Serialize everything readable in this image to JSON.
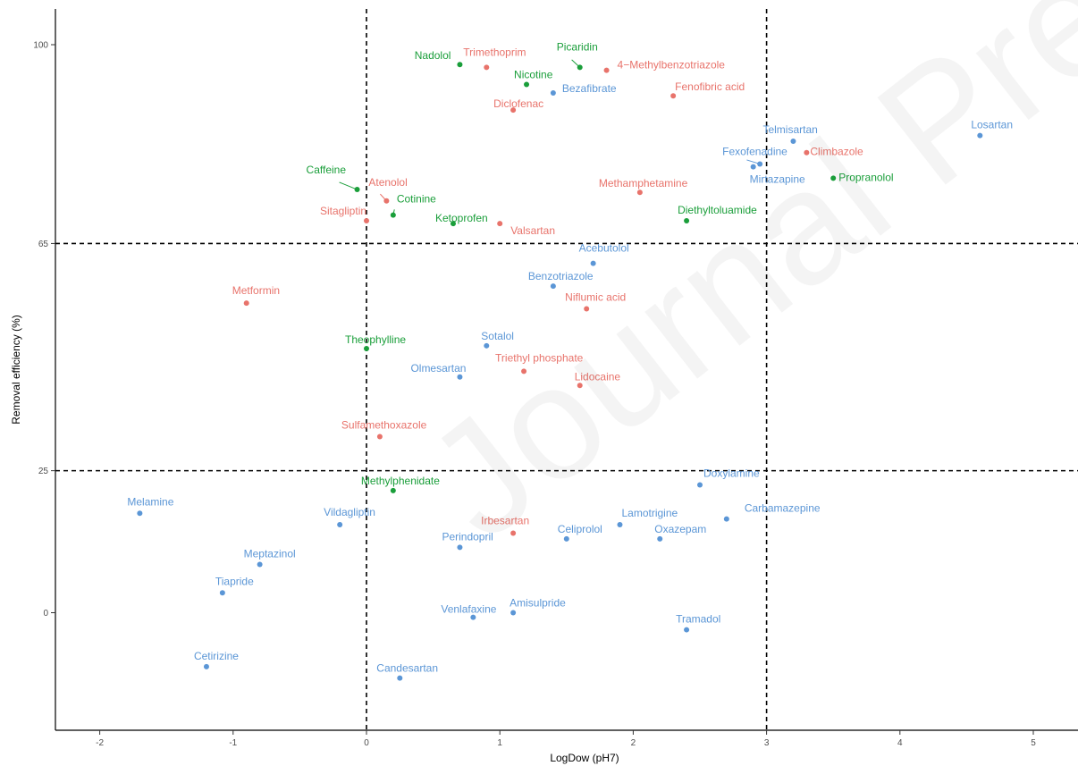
{
  "watermark": "Journal Pre-proof",
  "colors": {
    "group_green": "#1a9e3a",
    "group_red": "#e8736b",
    "group_blue": "#5b96d6"
  },
  "chart_data": {
    "type": "scatter",
    "title": "",
    "xlabel": "LogDow (pH7)",
    "ylabel": "Removal efficiency (%)",
    "xlim": [
      -2.35,
      5.35
    ],
    "ylim": [
      -20,
      105
    ],
    "x_ticks": [
      -2,
      -1,
      0,
      1,
      2,
      3,
      4,
      5
    ],
    "y_ticks": [
      0,
      25,
      65,
      100
    ],
    "reference_lines": {
      "vertical": [
        0,
        3
      ],
      "horizontal": [
        25,
        65
      ],
      "style": "dashed"
    },
    "grid": false,
    "legend": "none",
    "series": [
      {
        "color": "#1a9e3a",
        "points": [
          {
            "label": "Nadolol",
            "x": 0.7,
            "y": 96.5
          },
          {
            "label": "Picaridin",
            "x": 1.6,
            "y": 96.0
          },
          {
            "label": "Nicotine",
            "x": 1.2,
            "y": 93.0
          },
          {
            "label": "Caffeine",
            "x": -0.07,
            "y": 74.5
          },
          {
            "label": "Cotinine",
            "x": 0.2,
            "y": 70.0
          },
          {
            "label": "Ketoprofen",
            "x": 0.65,
            "y": 68.5
          },
          {
            "label": "Diethyltoluamide",
            "x": 2.4,
            "y": 69.0
          },
          {
            "label": "Propranolol",
            "x": 3.5,
            "y": 76.5
          },
          {
            "label": "Theophylline",
            "x": 0.0,
            "y": 46.5
          },
          {
            "label": "Methylphenidate",
            "x": 0.2,
            "y": 21.5
          }
        ]
      },
      {
        "color": "#e8736b",
        "points": [
          {
            "label": "Trimethoprim",
            "x": 0.9,
            "y": 96.0
          },
          {
            "label": "4−Methylbenzotriazole",
            "x": 1.8,
            "y": 95.5
          },
          {
            "label": "Diclofenac",
            "x": 1.1,
            "y": 88.5
          },
          {
            "label": "Fenofibric acid",
            "x": 2.3,
            "y": 91.0
          },
          {
            "label": "Climbazole",
            "x": 3.3,
            "y": 81.0
          },
          {
            "label": "Atenolol",
            "x": 0.15,
            "y": 72.5
          },
          {
            "label": "Methamphetamine",
            "x": 2.05,
            "y": 74.0
          },
          {
            "label": "Sitagliptin",
            "x": 0.0,
            "y": 69.0
          },
          {
            "label": "Valsartan",
            "x": 1.0,
            "y": 68.5
          },
          {
            "label": "Metformin",
            "x": -0.9,
            "y": 54.5
          },
          {
            "label": "Niflumic acid",
            "x": 1.65,
            "y": 53.5
          },
          {
            "label": "Triethyl phosphate",
            "x": 1.18,
            "y": 42.5
          },
          {
            "label": "Lidocaine",
            "x": 1.6,
            "y": 40.0
          },
          {
            "label": "Sulfamethoxazole",
            "x": 0.1,
            "y": 31.0
          },
          {
            "label": "Irbesartan",
            "x": 1.1,
            "y": 14.0
          }
        ]
      },
      {
        "color": "#5b96d6",
        "points": [
          {
            "label": "Bezafibrate",
            "x": 1.4,
            "y": 91.5
          },
          {
            "label": "Telmisartan",
            "x": 3.2,
            "y": 83.0
          },
          {
            "label": "Losartan",
            "x": 4.6,
            "y": 84.0
          },
          {
            "label": "Fexofenadine",
            "x": 2.95,
            "y": 79.0
          },
          {
            "label": "Mirtazapine",
            "x": 2.9,
            "y": 78.5
          },
          {
            "label": "Acebutolol",
            "x": 1.7,
            "y": 61.5
          },
          {
            "label": "Benzotriazole",
            "x": 1.4,
            "y": 57.5
          },
          {
            "label": "Sotalol",
            "x": 0.9,
            "y": 47.0
          },
          {
            "label": "Olmesartan",
            "x": 0.7,
            "y": 41.5
          },
          {
            "label": "Doxylamine",
            "x": 2.5,
            "y": 22.5
          },
          {
            "label": "Melamine",
            "x": -1.7,
            "y": 17.5
          },
          {
            "label": "Vildagliptin",
            "x": -0.2,
            "y": 15.5
          },
          {
            "label": "Lamotrigine",
            "x": 1.9,
            "y": 15.5
          },
          {
            "label": "Carbamazepine",
            "x": 2.7,
            "y": 16.5
          },
          {
            "label": "Celiprolol",
            "x": 1.5,
            "y": 13.0
          },
          {
            "label": "Oxazepam",
            "x": 2.2,
            "y": 13.0
          },
          {
            "label": "Perindopril",
            "x": 0.7,
            "y": 11.5
          },
          {
            "label": "Meptazinol",
            "x": -0.8,
            "y": 8.5
          },
          {
            "label": "Tiapride",
            "x": -1.08,
            "y": 3.5
          },
          {
            "label": "Venlafaxine",
            "x": 0.8,
            "y": -0.8
          },
          {
            "label": "Amisulpride",
            "x": 1.1,
            "y": 0.0
          },
          {
            "label": "Tramadol",
            "x": 2.4,
            "y": -3.0
          },
          {
            "label": "Cetirizine",
            "x": -1.2,
            "y": -9.5
          },
          {
            "label": "Candesartan",
            "x": 0.25,
            "y": -11.5
          }
        ]
      }
    ]
  }
}
